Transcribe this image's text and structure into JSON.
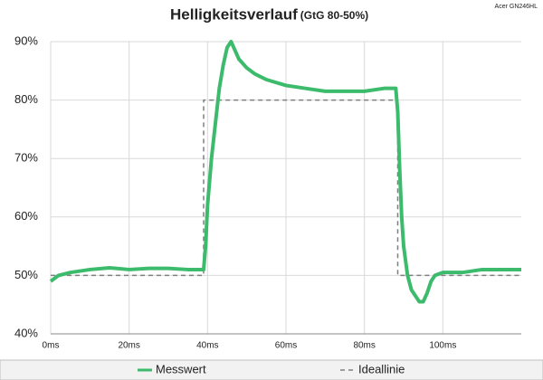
{
  "chart_data": {
    "type": "line",
    "title": "Helligkeitsverlauf",
    "subtitle": "(GtG 80-50%)",
    "annotation": "Acer GN246HL",
    "xlim": [
      0,
      120
    ],
    "xticks": [
      {
        "value": 0,
        "label": "0ms"
      },
      {
        "value": 20,
        "label": "20ms"
      },
      {
        "value": 40,
        "label": "40ms"
      },
      {
        "value": 60,
        "label": "60ms"
      },
      {
        "value": 80,
        "label": "80ms"
      },
      {
        "value": 100,
        "label": "100ms"
      }
    ],
    "ylim": [
      40,
      90
    ],
    "yticks": [
      {
        "value": 40,
        "label": "40%"
      },
      {
        "value": 50,
        "label": "50%"
      },
      {
        "value": 60,
        "label": "60%"
      },
      {
        "value": 70,
        "label": "70%"
      },
      {
        "value": 80,
        "label": "80%"
      },
      {
        "value": 90,
        "label": "90%"
      }
    ],
    "grid": true,
    "series": [
      {
        "name": "Ideallinie",
        "color": "#7f7f7f",
        "dashed": true,
        "x": [
          0,
          39,
          39,
          88.5,
          88.5,
          120
        ],
        "values": [
          50,
          50,
          80,
          80,
          50,
          50
        ]
      },
      {
        "name": "Messwert",
        "color": "#3dbb6c",
        "dashed": false,
        "x": [
          0,
          2,
          5,
          10,
          15,
          20,
          25,
          30,
          35,
          38,
          39,
          39.5,
          40,
          41,
          42,
          43,
          44,
          45,
          46,
          47,
          48,
          50,
          52,
          55,
          60,
          65,
          70,
          75,
          80,
          85,
          88,
          88.5,
          89,
          89.5,
          90,
          91,
          92,
          93,
          94,
          95,
          96,
          97,
          98,
          100,
          105,
          110,
          115,
          120
        ],
        "values": [
          49,
          50,
          50.5,
          51,
          51.3,
          51,
          51.2,
          51.2,
          51,
          51,
          51,
          55,
          62,
          70,
          76,
          82,
          86,
          89,
          90,
          88.5,
          87,
          85.5,
          84.5,
          83.5,
          82.5,
          82,
          81.5,
          81.5,
          81.5,
          82,
          82,
          78,
          68,
          60,
          55,
          50,
          47.5,
          46.5,
          45.5,
          45.5,
          47,
          49,
          50,
          50.5,
          50.5,
          51,
          51,
          51
        ]
      }
    ],
    "legend_order": [
      1,
      0
    ]
  }
}
